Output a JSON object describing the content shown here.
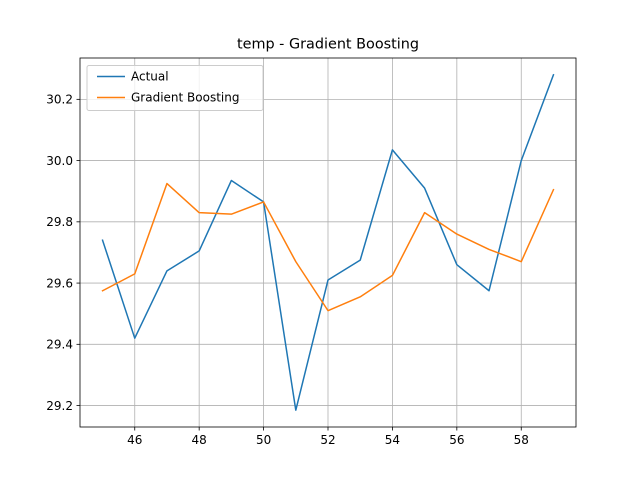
{
  "chart_data": {
    "type": "line",
    "title": "temp - Gradient Boosting",
    "xlabel": "",
    "ylabel": "",
    "x": [
      45,
      46,
      47,
      48,
      49,
      50,
      51,
      52,
      53,
      54,
      55,
      56,
      57,
      58,
      59
    ],
    "series": [
      {
        "name": "Actual",
        "color": "#1f77b4",
        "values": [
          29.74,
          29.42,
          29.64,
          29.705,
          29.935,
          29.865,
          29.185,
          29.61,
          29.675,
          30.035,
          29.91,
          29.66,
          29.575,
          30.0,
          30.28
        ]
      },
      {
        "name": "Gradient Boosting",
        "color": "#ff7f0e",
        "values": [
          29.575,
          29.63,
          29.925,
          29.83,
          29.825,
          29.865,
          29.67,
          29.51,
          29.555,
          29.625,
          29.83,
          29.76,
          29.71,
          29.67,
          29.905
        ]
      }
    ],
    "xlim": [
      44.3,
      59.7
    ],
    "ylim": [
      29.13,
      30.335
    ],
    "xticks": [
      46,
      48,
      50,
      52,
      54,
      56,
      58
    ],
    "yticks": [
      29.2,
      29.4,
      29.6,
      29.8,
      30.0,
      30.2
    ],
    "xtick_labels": [
      "46",
      "48",
      "50",
      "52",
      "54",
      "56",
      "58"
    ],
    "ytick_labels": [
      "29.2",
      "29.4",
      "29.6",
      "29.8",
      "30.0",
      "30.2"
    ],
    "grid": true,
    "legend_position": "top-left"
  }
}
